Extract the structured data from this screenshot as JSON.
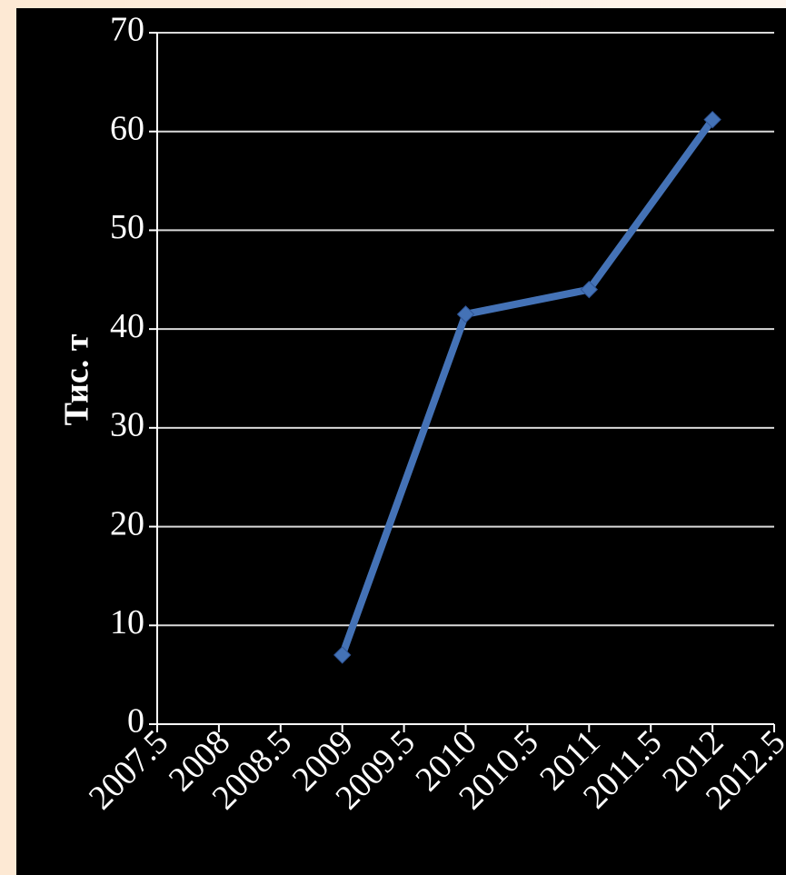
{
  "chart_data": {
    "type": "scatter",
    "mode": "lines+markers",
    "title": "",
    "xlabel": "",
    "ylabel": "Тис. т",
    "xlim": [
      2007.5,
      2012.5
    ],
    "ylim": [
      0,
      70
    ],
    "x_ticks": [
      "2007.5",
      "2008",
      "2008.5",
      "2009",
      "2009.5",
      "2010",
      "2010.5",
      "2011",
      "2011.5",
      "2012",
      "2012.5"
    ],
    "y_ticks": [
      "0",
      "10",
      "20",
      "30",
      "40",
      "50",
      "60",
      "70"
    ],
    "grid": "horizontal",
    "legend": "none",
    "series": [
      {
        "x": [
          2009,
          2010,
          2011,
          2012
        ],
        "y": [
          7,
          41.5,
          44,
          61.2
        ],
        "color": "#4472b6"
      }
    ],
    "background_color": "#000000",
    "text_color": "#ffffff",
    "grid_color": "#d9d9d9"
  }
}
